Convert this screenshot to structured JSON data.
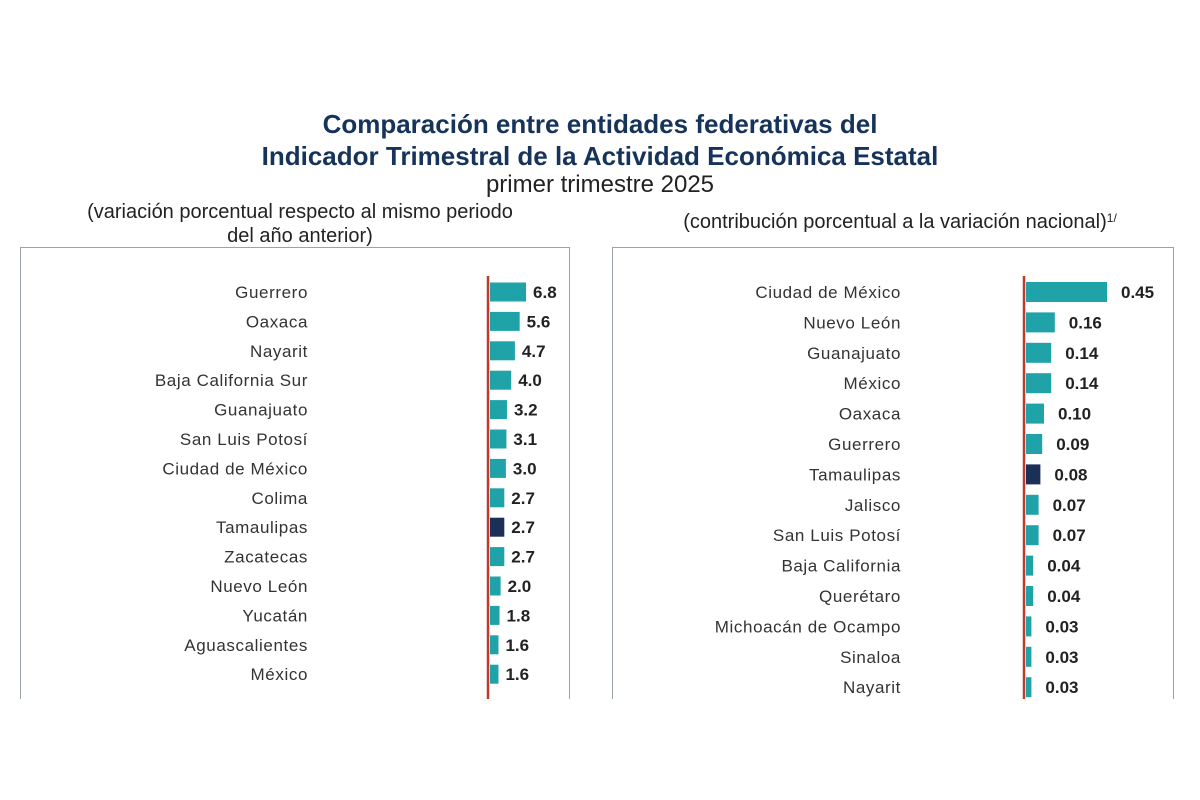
{
  "title_line1": "Comparación entre entidades federativas del",
  "title_line2": "Indicador Trimestral de la Actividad Económica Estatal",
  "title_line3": "primer trimestre 2025",
  "left_subtitle_line1": "(variación porcentual respecto al mismo periodo",
  "left_subtitle_line2": "del año anterior)",
  "right_subtitle": "(contribución porcentual a la variación nacional)",
  "right_subtitle_note": "1/",
  "colors": {
    "bar": "#1fa3a8",
    "highlight": "#1c2f57",
    "axis": "#c0392b"
  },
  "chart_data": [
    {
      "type": "bar",
      "orientation": "horizontal",
      "highlight": "Tamaulipas",
      "categories": [
        "Guerrero",
        "Oaxaca",
        "Nayarit",
        "Baja California Sur",
        "Guanajuato",
        "San Luis Potosí",
        "Ciudad de México",
        "Colima",
        "Tamaulipas",
        "Zacatecas",
        "Nuevo León",
        "Yucatán",
        "Aguascalientes",
        "México"
      ],
      "values": [
        6.8,
        5.6,
        4.7,
        4.0,
        3.2,
        3.1,
        3.0,
        2.7,
        2.7,
        2.7,
        2.0,
        1.8,
        1.6,
        1.6
      ],
      "labels": [
        "6.8",
        "5.6",
        "4.7",
        "4.0",
        "3.2",
        "3.1",
        "3.0",
        "2.7",
        "2.7",
        "2.7",
        "2.0",
        "1.8",
        "1.6",
        "1.6"
      ]
    },
    {
      "type": "bar",
      "orientation": "horizontal",
      "highlight": "Tamaulipas",
      "categories": [
        "Ciudad de México",
        "Nuevo León",
        "Guanajuato",
        "México",
        "Oaxaca",
        "Guerrero",
        "Tamaulipas",
        "Jalisco",
        "San Luis Potosí",
        "Baja California",
        "Querétaro",
        "Michoacán de Ocampo",
        "Sinaloa",
        "Nayarit"
      ],
      "values": [
        0.45,
        0.16,
        0.14,
        0.14,
        0.1,
        0.09,
        0.08,
        0.07,
        0.07,
        0.04,
        0.04,
        0.03,
        0.03,
        0.03
      ],
      "labels": [
        "0.45",
        "0.16",
        "0.14",
        "0.14",
        "0.10",
        "0.09",
        "0.08",
        "0.07",
        "0.07",
        "0.04",
        "0.04",
        "0.03",
        "0.03",
        "0.03"
      ]
    }
  ]
}
